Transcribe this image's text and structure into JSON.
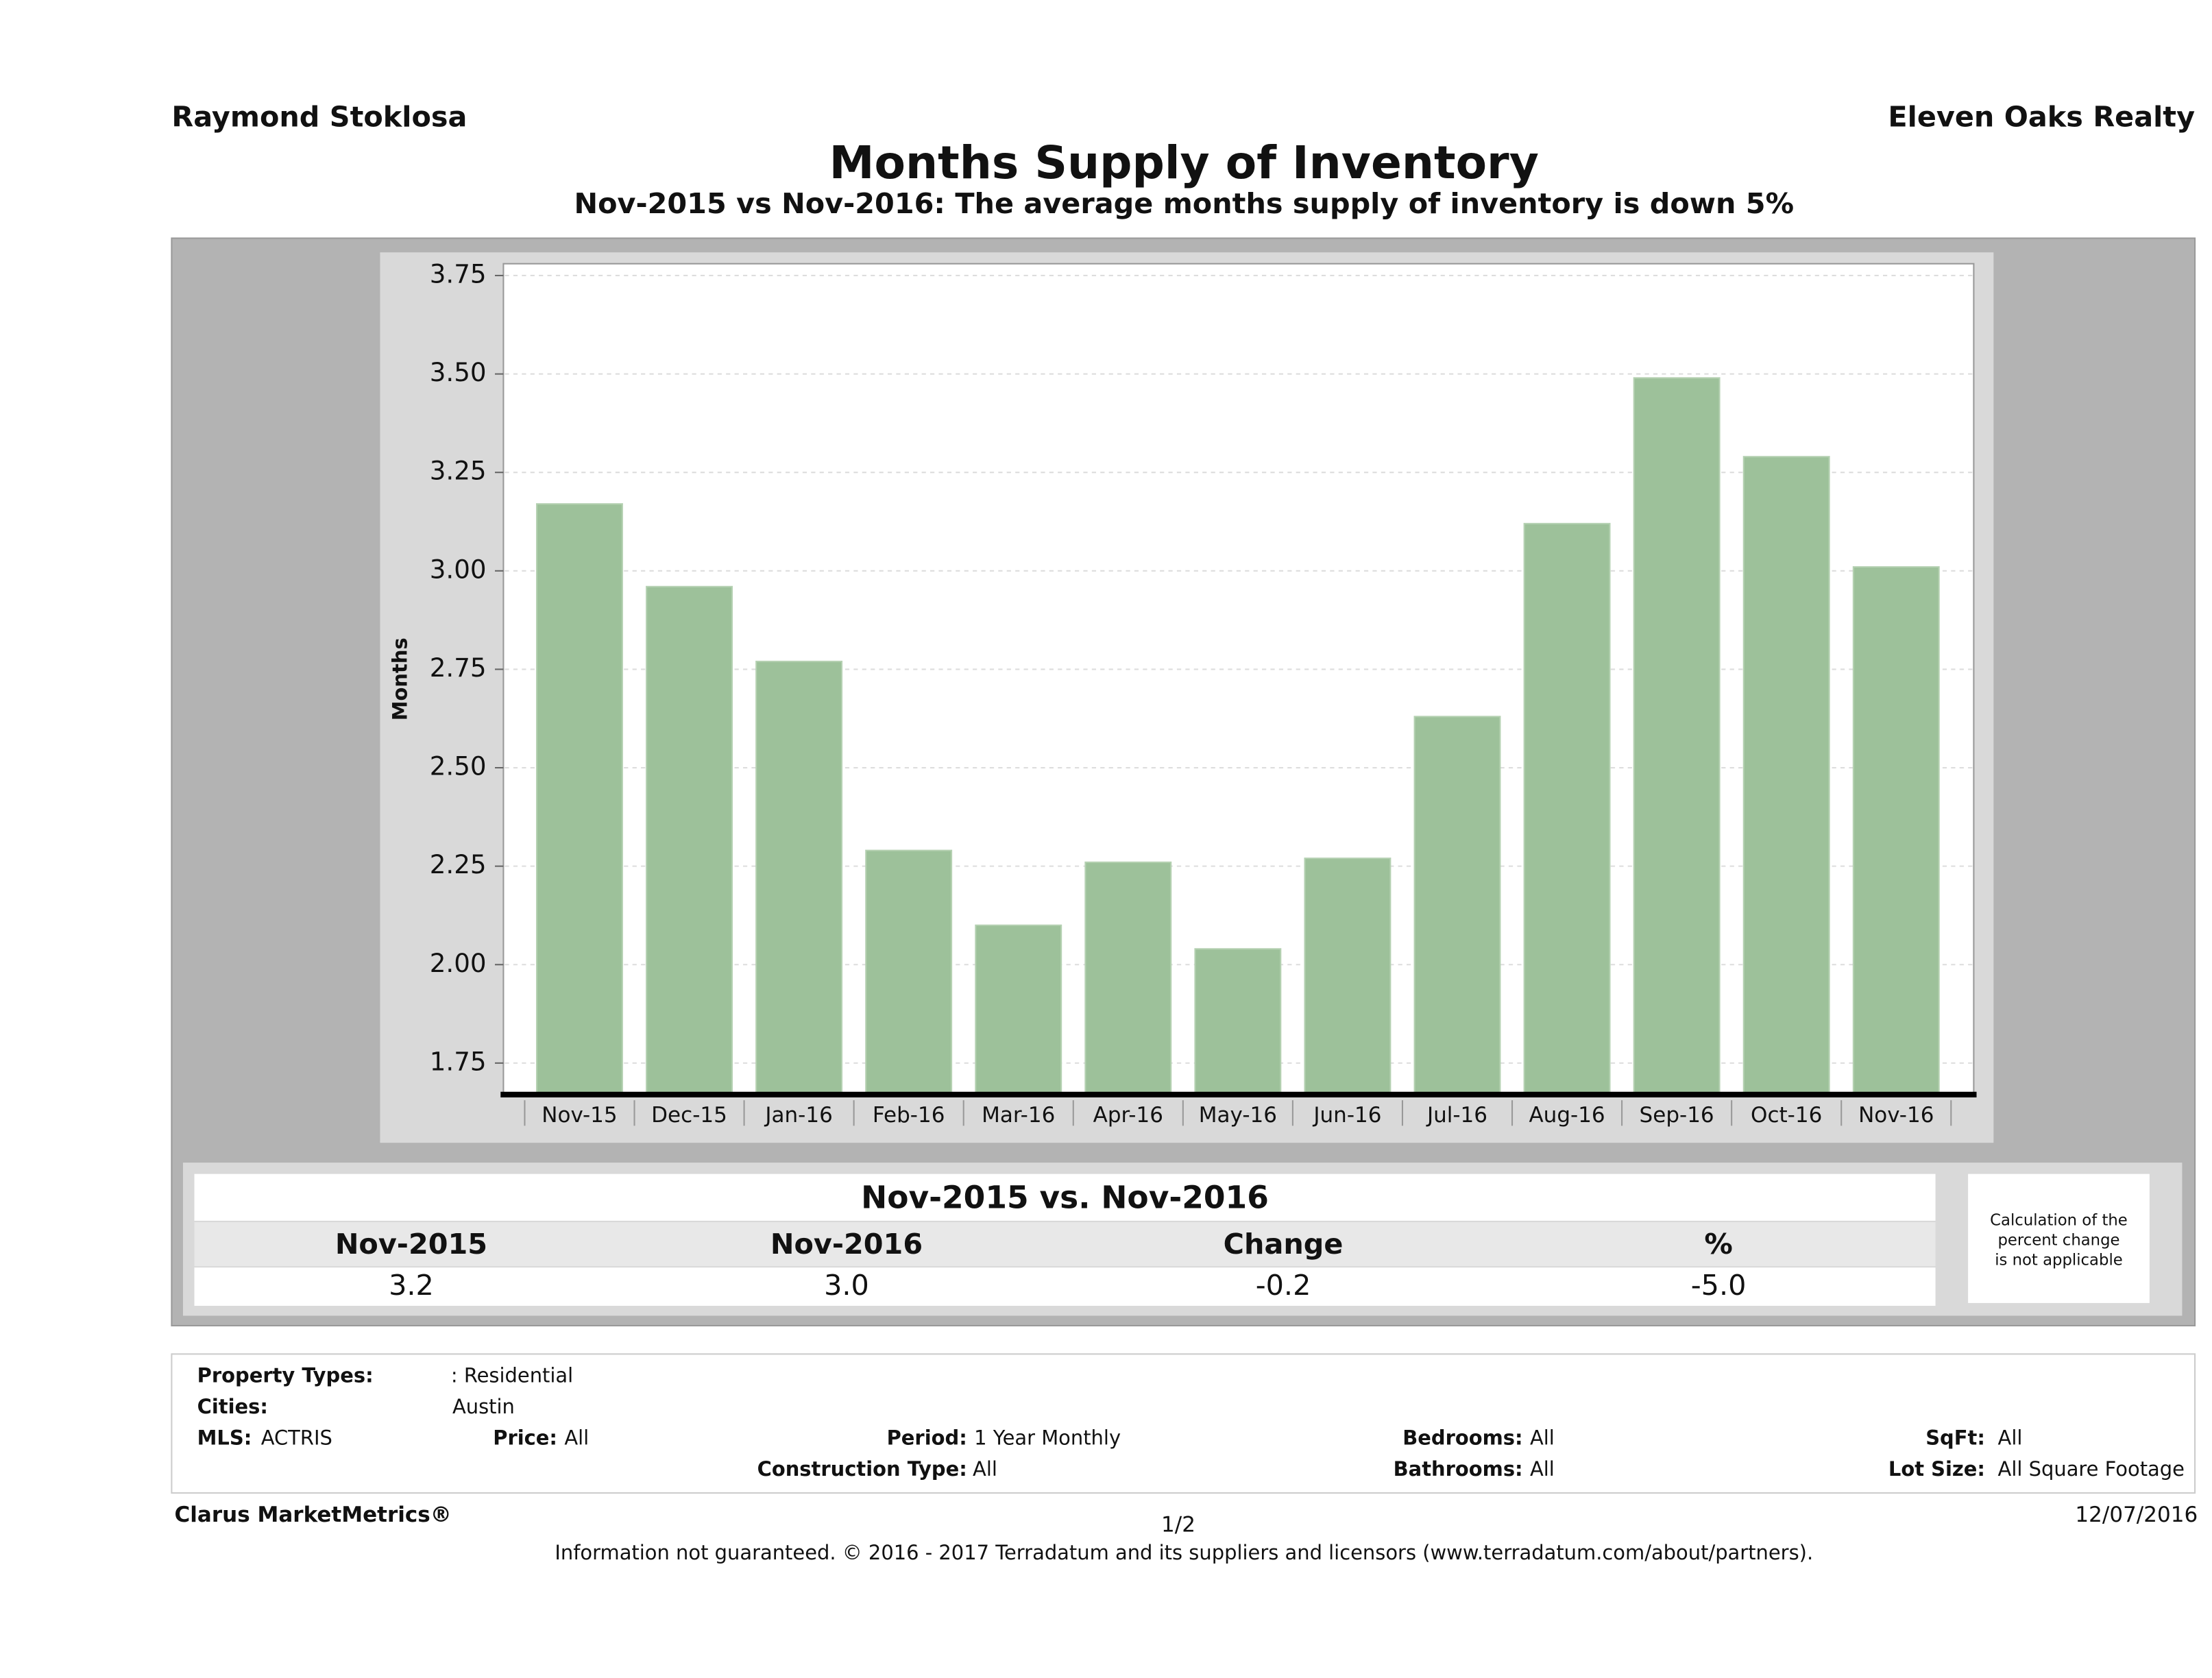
{
  "header": {
    "agent": "Raymond Stoklosa",
    "company": "Eleven Oaks Realty"
  },
  "chart_data": {
    "type": "bar",
    "title": "Months Supply of Inventory",
    "subtitle": "Nov-2015 vs Nov-2016: The average months supply of inventory is down 5%",
    "y_label": "Months",
    "categories": [
      "Nov-15",
      "Dec-15",
      "Jan-16",
      "Feb-16",
      "Mar-16",
      "Apr-16",
      "May-16",
      "Jun-16",
      "Jul-16",
      "Aug-16",
      "Sep-16",
      "Oct-16",
      "Nov-16"
    ],
    "values": [
      3.17,
      2.96,
      2.77,
      2.29,
      2.1,
      2.26,
      2.04,
      2.27,
      2.63,
      3.12,
      3.49,
      3.29,
      3.01
    ],
    "color": "#9dc19a",
    "ylim": [
      1.67,
      3.78
    ],
    "yticks": [
      1.75,
      {
        "value": 2,
        "label": "2.00"
      },
      2.25,
      {
        "value": 2.5,
        "label": "2.50"
      },
      2.75,
      {
        "value": 3,
        "label": "3.00"
      },
      3.25,
      {
        "value": 3.5,
        "label": "3.50"
      },
      3.75
    ],
    "grid": true
  },
  "summary": {
    "title": "Nov-2015 vs. Nov-2016",
    "headers": [
      "Nov-2015",
      "Nov-2016",
      "Change",
      "%"
    ],
    "values": [
      "3.2",
      "3.0",
      "-0.2",
      "-5.0"
    ],
    "note": [
      "Calculation of the",
      "percent change",
      "is not applicable"
    ]
  },
  "filters": {
    "property_types_label": "Property Types:",
    "property_types": ": Residential",
    "cities_label": "Cities:",
    "cities": "Austin",
    "mls_label": "MLS:",
    "mls": "ACTRIS",
    "price_label": "Price:",
    "price": "All",
    "period_label": "Period:",
    "period": "1 Year Monthly",
    "construction_label": "Construction Type:",
    "construction": "All",
    "bedrooms_label": "Bedrooms:",
    "bedrooms": "All",
    "bathrooms_label": "Bathrooms:",
    "bathrooms": "All",
    "sqft_label": "SqFt:",
    "sqft": "All",
    "lot_label": "Lot Size:",
    "lot": "All Square Footage"
  },
  "footer": {
    "brand": "Clarus MarketMetrics®",
    "page": "1/2",
    "date": "12/07/2016",
    "disclaimer": "Information not guaranteed. © 2016 - 2017 Terradatum and its suppliers and licensors (www.terradatum.com/about/partners)."
  }
}
